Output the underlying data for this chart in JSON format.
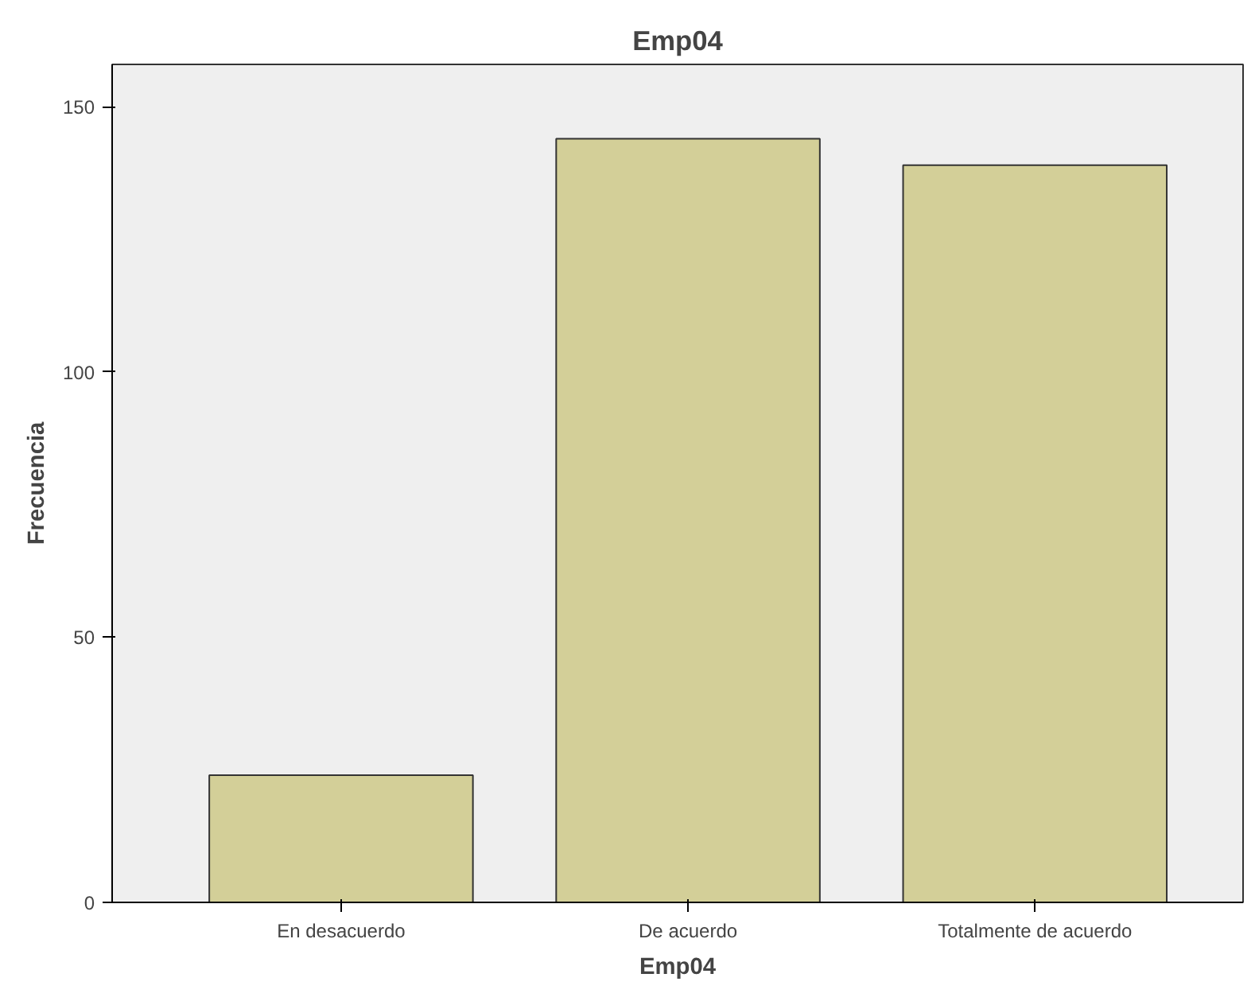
{
  "chart_data": {
    "type": "bar",
    "title": "Emp04",
    "xlabel": "Emp04",
    "ylabel": "Frecuencia",
    "categories": [
      "En desacuerdo",
      "De acuerdo",
      "Totalmente de acuerdo"
    ],
    "values": [
      24,
      144,
      139
    ],
    "color": "#d3cf98",
    "ylim": [
      0,
      158
    ],
    "yticks": [
      0,
      50,
      100,
      150
    ],
    "grid": false
  }
}
